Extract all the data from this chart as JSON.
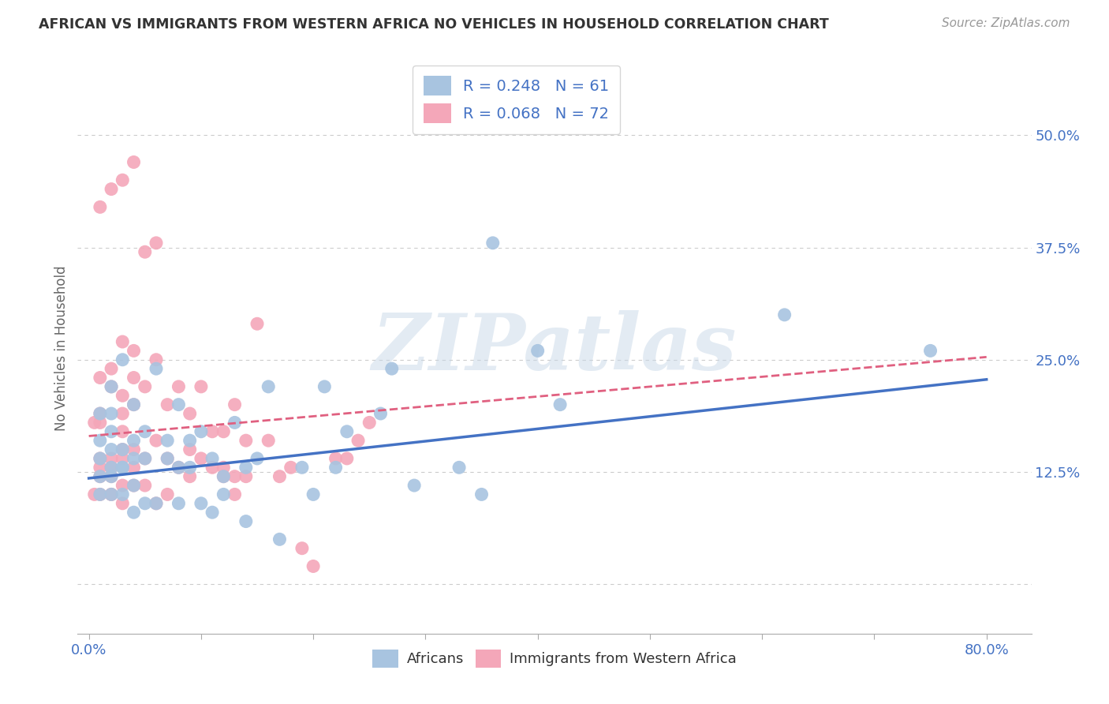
{
  "title": "AFRICAN VS IMMIGRANTS FROM WESTERN AFRICA NO VEHICLES IN HOUSEHOLD CORRELATION CHART",
  "source": "Source: ZipAtlas.com",
  "ylabel": "No Vehicles in Household",
  "x_ticks": [
    0.0,
    0.1,
    0.2,
    0.3,
    0.4,
    0.5,
    0.6,
    0.7,
    0.8
  ],
  "x_tick_labels": [
    "0.0%",
    "",
    "",
    "",
    "",
    "",
    "",
    "",
    "80.0%"
  ],
  "y_ticks": [
    0.0,
    0.125,
    0.25,
    0.375,
    0.5
  ],
  "y_tick_labels": [
    "",
    "12.5%",
    "25.0%",
    "37.5%",
    "50.0%"
  ],
  "xlim": [
    -0.01,
    0.84
  ],
  "ylim": [
    -0.055,
    0.58
  ],
  "watermark": "ZIPatlas",
  "africans_color": "#a8c4e0",
  "immigrants_color": "#f4a7b9",
  "africans_line_color": "#4472c4",
  "immigrants_line_color": "#e06080",
  "background_color": "#ffffff",
  "grid_color": "#cccccc",
  "title_color": "#333333",
  "axis_color": "#4472c4",
  "africans_x": [
    0.01,
    0.01,
    0.01,
    0.01,
    0.01,
    0.02,
    0.02,
    0.02,
    0.02,
    0.02,
    0.02,
    0.02,
    0.03,
    0.03,
    0.03,
    0.03,
    0.03,
    0.04,
    0.04,
    0.04,
    0.04,
    0.04,
    0.05,
    0.05,
    0.05,
    0.06,
    0.06,
    0.07,
    0.07,
    0.08,
    0.08,
    0.08,
    0.09,
    0.09,
    0.1,
    0.1,
    0.11,
    0.11,
    0.12,
    0.12,
    0.13,
    0.14,
    0.14,
    0.15,
    0.16,
    0.17,
    0.19,
    0.2,
    0.21,
    0.22,
    0.23,
    0.26,
    0.27,
    0.29,
    0.33,
    0.35,
    0.36,
    0.4,
    0.42,
    0.62,
    0.75
  ],
  "africans_y": [
    0.1,
    0.12,
    0.14,
    0.16,
    0.19,
    0.1,
    0.12,
    0.13,
    0.15,
    0.17,
    0.19,
    0.22,
    0.1,
    0.13,
    0.13,
    0.15,
    0.25,
    0.08,
    0.11,
    0.14,
    0.16,
    0.2,
    0.09,
    0.14,
    0.17,
    0.09,
    0.24,
    0.14,
    0.16,
    0.09,
    0.13,
    0.2,
    0.13,
    0.16,
    0.09,
    0.17,
    0.08,
    0.14,
    0.1,
    0.12,
    0.18,
    0.07,
    0.13,
    0.14,
    0.22,
    0.05,
    0.13,
    0.1,
    0.22,
    0.13,
    0.17,
    0.19,
    0.24,
    0.11,
    0.13,
    0.1,
    0.38,
    0.26,
    0.2,
    0.3,
    0.26
  ],
  "immigrants_x": [
    0.005,
    0.005,
    0.01,
    0.01,
    0.01,
    0.01,
    0.01,
    0.01,
    0.01,
    0.02,
    0.02,
    0.02,
    0.02,
    0.02,
    0.02,
    0.02,
    0.03,
    0.03,
    0.03,
    0.03,
    0.03,
    0.03,
    0.03,
    0.03,
    0.04,
    0.04,
    0.04,
    0.04,
    0.04,
    0.04,
    0.05,
    0.05,
    0.05,
    0.06,
    0.06,
    0.06,
    0.07,
    0.07,
    0.07,
    0.08,
    0.08,
    0.09,
    0.09,
    0.09,
    0.1,
    0.1,
    0.11,
    0.11,
    0.12,
    0.12,
    0.12,
    0.13,
    0.13,
    0.13,
    0.14,
    0.14,
    0.15,
    0.16,
    0.17,
    0.18,
    0.19,
    0.2,
    0.22,
    0.23,
    0.24,
    0.25,
    0.01,
    0.02,
    0.03,
    0.04,
    0.05,
    0.06
  ],
  "immigrants_y": [
    0.1,
    0.18,
    0.1,
    0.12,
    0.13,
    0.14,
    0.18,
    0.19,
    0.23,
    0.1,
    0.1,
    0.12,
    0.13,
    0.14,
    0.22,
    0.24,
    0.09,
    0.11,
    0.14,
    0.15,
    0.17,
    0.19,
    0.21,
    0.27,
    0.11,
    0.13,
    0.15,
    0.2,
    0.23,
    0.26,
    0.11,
    0.14,
    0.22,
    0.09,
    0.16,
    0.25,
    0.1,
    0.14,
    0.2,
    0.13,
    0.22,
    0.12,
    0.15,
    0.19,
    0.14,
    0.22,
    0.13,
    0.17,
    0.12,
    0.13,
    0.17,
    0.1,
    0.12,
    0.2,
    0.12,
    0.16,
    0.29,
    0.16,
    0.12,
    0.13,
    0.04,
    0.02,
    0.14,
    0.14,
    0.16,
    0.18,
    0.42,
    0.44,
    0.45,
    0.47,
    0.37,
    0.38
  ],
  "africans_line_x0": 0.0,
  "africans_line_y0": 0.118,
  "africans_line_x1": 0.8,
  "africans_line_y1": 0.228,
  "immigrants_line_x0": 0.0,
  "immigrants_line_y0": 0.165,
  "immigrants_line_x1": 0.8,
  "immigrants_line_y1": 0.253
}
